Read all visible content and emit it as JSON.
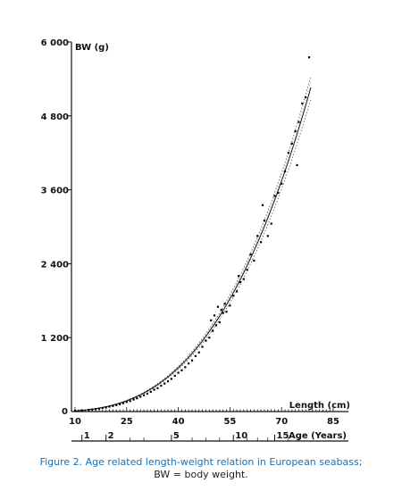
{
  "chart_data": {
    "type": "scatter",
    "ylabel": "BW (g)",
    "xlabel": "Length (cm)",
    "x2label": "Age (Years)",
    "xlim": [
      10,
      85
    ],
    "ylim": [
      0,
      6000
    ],
    "y_ticks": [
      {
        "value": 1200,
        "label": "1 200"
      },
      {
        "value": 2400,
        "label": "2 400"
      },
      {
        "value": 3600,
        "label": "3 600"
      },
      {
        "value": 4800,
        "label": "4 800"
      },
      {
        "value": 6000,
        "label": "6 000"
      }
    ],
    "y_zero_label": "0",
    "x_ticks": [
      {
        "value": 10,
        "label": "10"
      },
      {
        "value": 25,
        "label": "25"
      },
      {
        "value": 40,
        "label": "40"
      },
      {
        "value": 55,
        "label": "55"
      },
      {
        "value": 70,
        "label": "70"
      },
      {
        "value": 85,
        "label": "85"
      }
    ],
    "age_ticks": [
      {
        "length": 12,
        "label": "1"
      },
      {
        "length": 19,
        "label": "2"
      },
      {
        "length": 38,
        "label": "5"
      },
      {
        "length": 56,
        "label": "10"
      },
      {
        "length": 68,
        "label": "15"
      }
    ],
    "curve": {
      "a": 0.0124,
      "b": 2.97
    },
    "confidence_band": 0.035,
    "points": [
      [
        10,
        12
      ],
      [
        12,
        20
      ],
      [
        14,
        28
      ],
      [
        15,
        33
      ],
      [
        16,
        40
      ],
      [
        17,
        48
      ],
      [
        18,
        58
      ],
      [
        19,
        66
      ],
      [
        20,
        80
      ],
      [
        21,
        90
      ],
      [
        22,
        105
      ],
      [
        23,
        118
      ],
      [
        24,
        135
      ],
      [
        25,
        155
      ],
      [
        26,
        170
      ],
      [
        27,
        195
      ],
      [
        28,
        215
      ],
      [
        29,
        240
      ],
      [
        30,
        265
      ],
      [
        31,
        290
      ],
      [
        32,
        320
      ],
      [
        33,
        355
      ],
      [
        34,
        380
      ],
      [
        35,
        420
      ],
      [
        36,
        455
      ],
      [
        37,
        490
      ],
      [
        38,
        530
      ],
      [
        39,
        580
      ],
      [
        40,
        630
      ],
      [
        41,
        670
      ],
      [
        42,
        720
      ],
      [
        43,
        780
      ],
      [
        44,
        830
      ],
      [
        45,
        900
      ],
      [
        46,
        960
      ],
      [
        47,
        1050
      ],
      [
        48,
        1150
      ],
      [
        49,
        1200
      ],
      [
        49.5,
        1480
      ],
      [
        50,
        1310
      ],
      [
        50.5,
        1560
      ],
      [
        51,
        1400
      ],
      [
        51.5,
        1700
      ],
      [
        52,
        1450
      ],
      [
        52.5,
        1650
      ],
      [
        53,
        1600
      ],
      [
        53.5,
        1750
      ],
      [
        54,
        1620
      ],
      [
        55,
        1720
      ],
      [
        56,
        1880
      ],
      [
        57,
        1950
      ],
      [
        57.5,
        2200
      ],
      [
        58,
        2100
      ],
      [
        59,
        2150
      ],
      [
        60,
        2300
      ],
      [
        61,
        2550
      ],
      [
        62,
        2450
      ],
      [
        63,
        2850
      ],
      [
        64,
        2750
      ],
      [
        64.5,
        3350
      ],
      [
        65,
        3100
      ],
      [
        66,
        2850
      ],
      [
        67,
        3050
      ],
      [
        68,
        3500
      ],
      [
        69,
        3550
      ],
      [
        70,
        3700
      ],
      [
        71,
        3900
      ],
      [
        72,
        4200
      ],
      [
        73,
        4350
      ],
      [
        74,
        4550
      ],
      [
        74.5,
        4000
      ],
      [
        75,
        4700
      ],
      [
        76,
        5000
      ],
      [
        77,
        5100
      ],
      [
        78,
        5750
      ]
    ]
  },
  "caption": {
    "label": "Figure 2.",
    "line1": " Age related length-weight relation in European seabass;",
    "line2": "BW = body weight."
  }
}
